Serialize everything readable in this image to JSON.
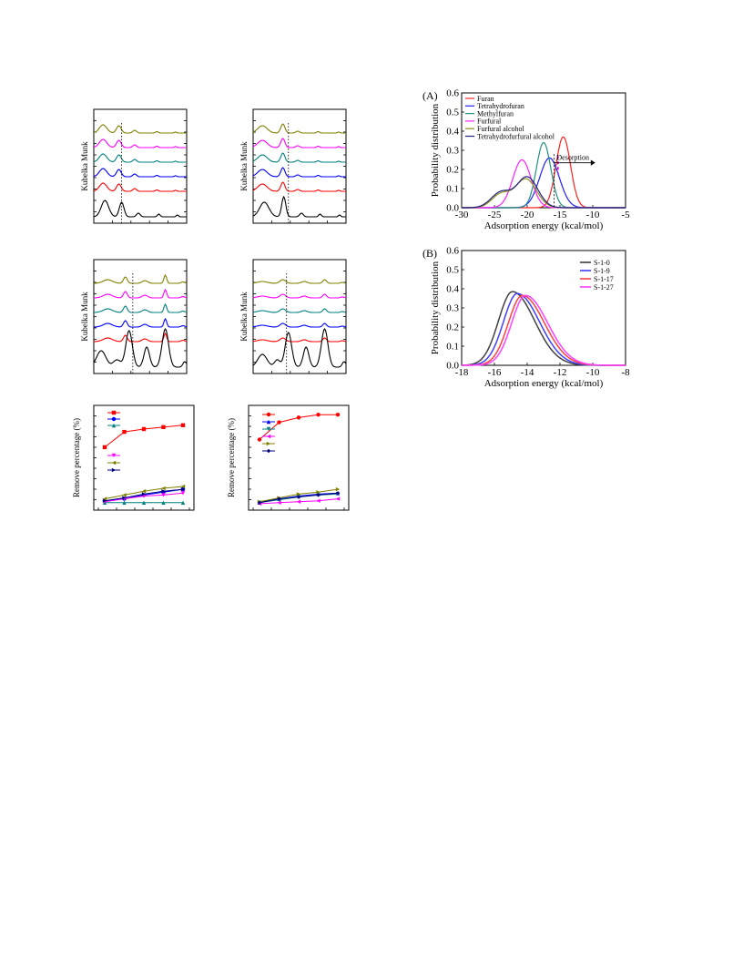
{
  "left_figures": {
    "spectra_ylabel": "Kubelka Munk",
    "remove_ylabel": "Remove percentage (%)",
    "spectra_panels": [
      {
        "colors": [
          "#808000",
          "#ff00ff",
          "#008080",
          "#0000ff",
          "#ff0000",
          "#000000"
        ]
      },
      {
        "colors": [
          "#808000",
          "#ff00ff",
          "#008080",
          "#0000ff",
          "#ff0000",
          "#000000"
        ]
      },
      {
        "colors": [
          "#808000",
          "#ff00ff",
          "#008080",
          "#0000ff",
          "#ff0000",
          "#000000"
        ]
      },
      {
        "colors": [
          "#808000",
          "#ff00ff",
          "#008080",
          "#0000ff",
          "#ff0000",
          "#000000"
        ]
      }
    ],
    "remove_panels": [
      {
        "legend_markers": [
          {
            "color": "#ff0000",
            "marker": "square"
          },
          {
            "color": "#0000ff",
            "marker": "circle"
          },
          {
            "color": "#008080",
            "marker": "triangle-up"
          },
          {
            "color": "#ff00ff",
            "marker": "triangle-down"
          },
          {
            "color": "#808000",
            "marker": "triangle-left"
          },
          {
            "color": "#000080",
            "marker": "triangle-right"
          }
        ],
        "series": [
          {
            "color": "#ff0000",
            "marker": "square",
            "values": [
              62,
              78,
              81,
              83,
              85
            ]
          },
          {
            "color": "#0000ff",
            "marker": "circle",
            "values": [
              6,
              8,
              12,
              15,
              18
            ]
          },
          {
            "color": "#008080",
            "marker": "triangle-up",
            "values": [
              4,
              4,
              4,
              4,
              4
            ]
          },
          {
            "color": "#ff00ff",
            "marker": "triangle-down",
            "values": [
              5,
              8,
              11,
              12,
              14
            ]
          },
          {
            "color": "#808000",
            "marker": "triangle-left",
            "values": [
              8,
              12,
              16,
              19,
              21
            ]
          },
          {
            "color": "#000080",
            "marker": "triangle-right",
            "values": [
              6,
              9,
              13,
              16,
              18
            ]
          }
        ]
      },
      {
        "legend_markers": [
          {
            "color": "#ff0000",
            "marker": "circle"
          },
          {
            "color": "#0000ff",
            "marker": "triangle-up"
          },
          {
            "color": "#008080",
            "marker": "triangle-down"
          },
          {
            "color": "#ff00ff",
            "marker": "triangle-left"
          },
          {
            "color": "#808000",
            "marker": "triangle-right"
          },
          {
            "color": "#000080",
            "marker": "diamond"
          }
        ],
        "series": [
          {
            "color": "#ff0000",
            "marker": "circle",
            "values": [
              70,
              88,
              93,
              96,
              96
            ]
          },
          {
            "color": "#0000ff",
            "marker": "triangle-up",
            "values": [
              4,
              8,
              11,
              13,
              14
            ]
          },
          {
            "color": "#008080",
            "marker": "triangle-down",
            "values": [
              4,
              7,
              10,
              12,
              13
            ]
          },
          {
            "color": "#ff00ff",
            "marker": "triangle-left",
            "values": [
              3,
              4,
              5,
              6,
              8
            ]
          },
          {
            "color": "#808000",
            "marker": "triangle-right",
            "values": [
              5,
              9,
              13,
              15,
              18
            ]
          },
          {
            "color": "#000080",
            "marker": "diamond",
            "values": [
              4,
              8,
              10,
              12,
              14
            ]
          }
        ]
      }
    ]
  },
  "chart_data": [
    {
      "panel_label": "(A)",
      "type": "line",
      "xlabel": "Adsorption energy (kcal/mol)",
      "ylabel": "Probability distribution",
      "xlim": [
        -30,
        -5
      ],
      "ylim": [
        0,
        0.6
      ],
      "xticks": [
        "-30",
        "-25",
        "-20",
        "-15",
        "-10",
        "-5"
      ],
      "yticks": [
        "0.0",
        "0.1",
        "0.2",
        "0.3",
        "0.4",
        "0.5",
        "0.6"
      ],
      "legend_position": "top-left",
      "annotation": "Desorption",
      "series": [
        {
          "name": "Furan",
          "color": "#ff2020",
          "peaks": [
            [
              -14.5,
              0.37,
              1.1
            ]
          ]
        },
        {
          "name": "Tetrahydrofuran",
          "color": "#2020ff",
          "peaks": [
            [
              -16.6,
              0.26,
              1.5
            ]
          ]
        },
        {
          "name": "Methylfuran",
          "color": "#209080",
          "peaks": [
            [
              -17.5,
              0.34,
              1.1
            ]
          ]
        },
        {
          "name": "Furfural",
          "color": "#ff20ff",
          "peaks": [
            [
              -20.8,
              0.25,
              1.4
            ]
          ]
        },
        {
          "name": "Furfural alcohol",
          "color": "#909020",
          "peaks": [
            [
              -20.2,
              0.15,
              1.6
            ],
            [
              -24.0,
              0.07,
              1.4
            ]
          ]
        },
        {
          "name": "Tetrahydrofurfural alcohol",
          "color": "#202080",
          "peaks": [
            [
              -20.0,
              0.16,
              1.6
            ],
            [
              -24.0,
              0.08,
              1.5
            ]
          ]
        }
      ]
    },
    {
      "panel_label": "(B)",
      "type": "line",
      "xlabel": "Adsorption energy (kcal/mol)",
      "ylabel": "Probability distribution",
      "xlim": [
        -18,
        -8
      ],
      "ylim": [
        0,
        0.6
      ],
      "xticks": [
        "-18",
        "-16",
        "-14",
        "-12",
        "-10",
        "-8"
      ],
      "yticks": [
        "0.0",
        "0.1",
        "0.2",
        "0.3",
        "0.4",
        "0.5",
        "0.6"
      ],
      "legend_position": "top-right",
      "series": [
        {
          "name": "S-1-0",
          "color": "#404040",
          "peak_x": -14.9,
          "peak_y": 0.385
        },
        {
          "name": "S-1-9",
          "color": "#4040ff",
          "peak_x": -14.6,
          "peak_y": 0.375
        },
        {
          "name": "S-1-17",
          "color": "#ff4040",
          "peak_x": -14.3,
          "peak_y": 0.365
        },
        {
          "name": "S-1-27",
          "color": "#ff40ff",
          "peak_x": -14.1,
          "peak_y": 0.365
        }
      ]
    }
  ]
}
